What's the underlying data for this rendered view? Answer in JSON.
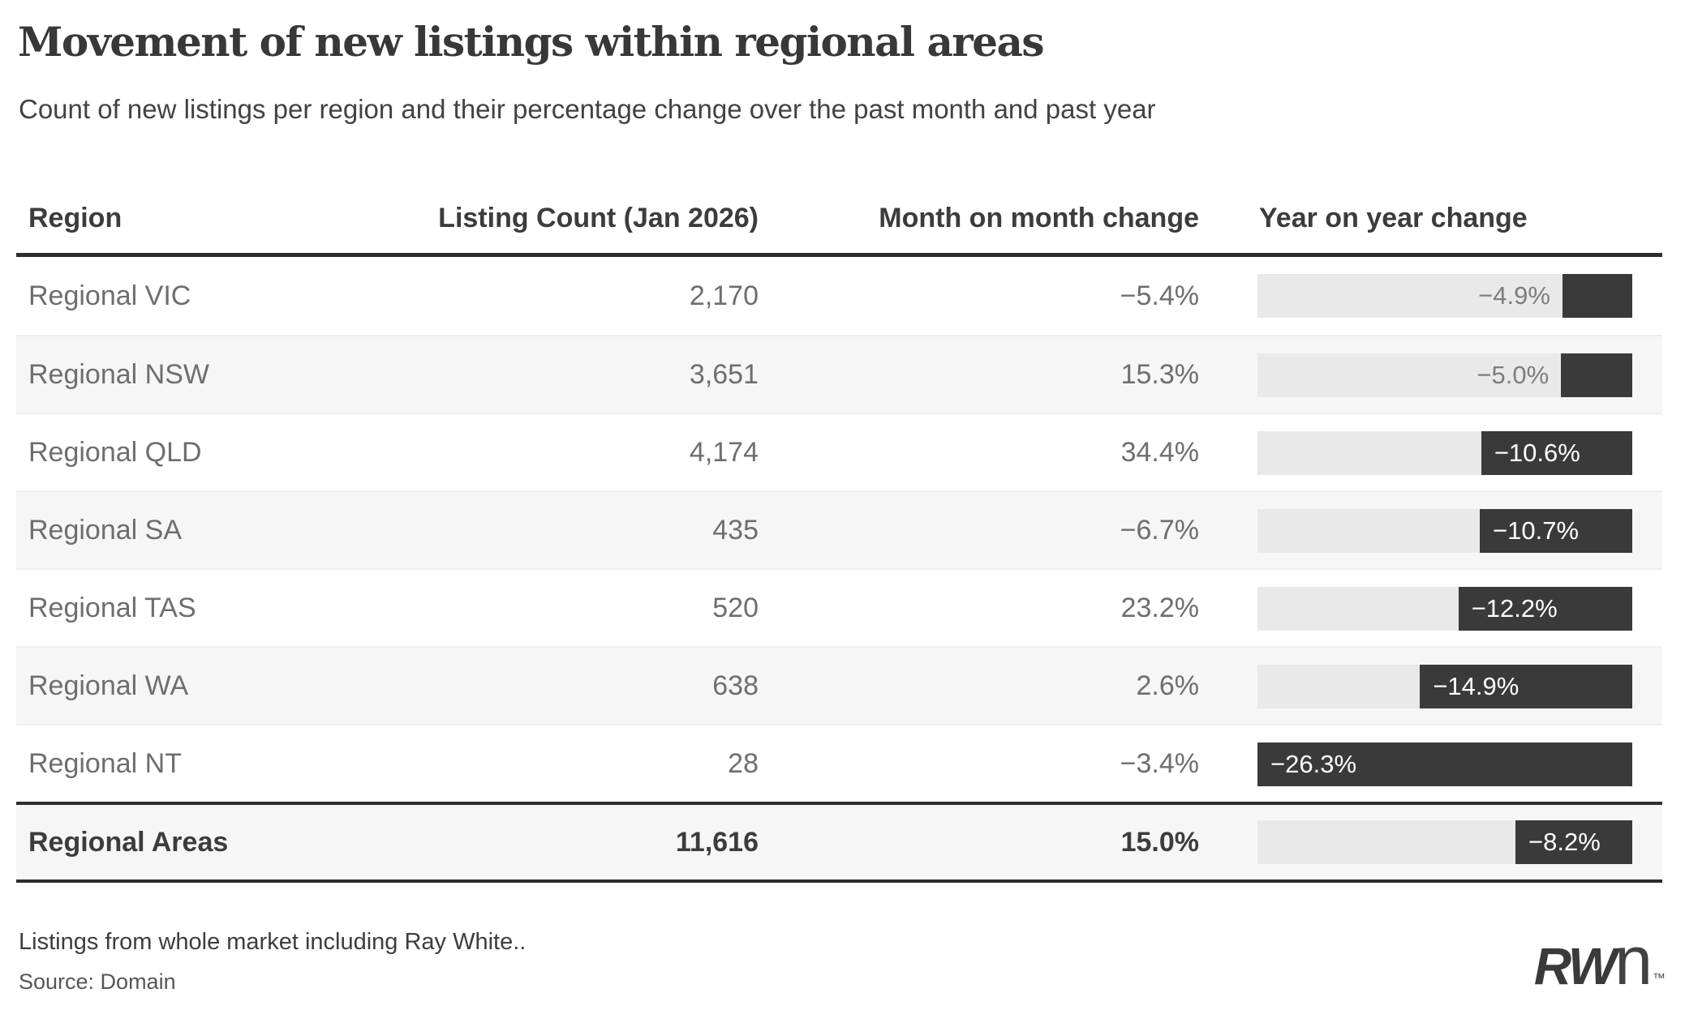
{
  "colors": {
    "bar_fill": "#3a3a3a",
    "bar_track": "#e9e9e9",
    "row_alt_bg": "#f6f6f6",
    "rule": "#2d2d2d",
    "text_dark": "#3c3c3c",
    "text_body": "#6e6e6e",
    "bar_label_inside": "#ffffff",
    "bar_label_outside": "#7d7d7d"
  },
  "header": {
    "title": "Movement of new listings within regional areas",
    "subtitle": "Count of new listings per region and their percentage change over the past month and past year"
  },
  "table": {
    "columns": [
      "Region",
      "Listing Count (Jan 2026)",
      "Month on month change",
      "Year on year change"
    ],
    "rows": [
      {
        "region": "Regional VIC",
        "count": "2,170",
        "mom": "−5.4%",
        "yoy_label": "−4.9%",
        "yoy_value": -4.9
      },
      {
        "region": "Regional NSW",
        "count": "3,651",
        "mom": "15.3%",
        "yoy_label": "−5.0%",
        "yoy_value": -5.0
      },
      {
        "region": "Regional QLD",
        "count": "4,174",
        "mom": "34.4%",
        "yoy_label": "−10.6%",
        "yoy_value": -10.6
      },
      {
        "region": "Regional SA",
        "count": "435",
        "mom": "−6.7%",
        "yoy_label": "−10.7%",
        "yoy_value": -10.7
      },
      {
        "region": "Regional TAS",
        "count": "520",
        "mom": "23.2%",
        "yoy_label": "−12.2%",
        "yoy_value": -12.2
      },
      {
        "region": "Regional WA",
        "count": "638",
        "mom": "2.6%",
        "yoy_label": "−14.9%",
        "yoy_value": -14.9
      },
      {
        "region": "Regional NT",
        "count": "28",
        "mom": "−3.4%",
        "yoy_label": "−26.3%",
        "yoy_value": -26.3
      }
    ],
    "total_row": {
      "region": "Regional Areas",
      "count": "11,616",
      "mom": "15.0%",
      "yoy_label": "−8.2%",
      "yoy_value": -8.2
    }
  },
  "footer": {
    "note": "Listings from whole market including Ray White..",
    "source": "Source: Domain",
    "logo_rw": "RW",
    "logo_n": "n",
    "logo_tm": "™"
  },
  "chart_data": {
    "type": "table",
    "title": "Movement of new listings within regional areas",
    "subtitle": "Count of new listings per region and their percentage change over the past month and past year",
    "columns": [
      "Region",
      "Listing Count (Jan 2026)",
      "Month on month change",
      "Year on year change"
    ],
    "rows": [
      [
        "Regional VIC",
        2170,
        -5.4,
        -4.9
      ],
      [
        "Regional NSW",
        3651,
        15.3,
        -5.0
      ],
      [
        "Regional QLD",
        4174,
        34.4,
        -10.6
      ],
      [
        "Regional SA",
        435,
        -6.7,
        -10.7
      ],
      [
        "Regional TAS",
        520,
        23.2,
        -12.2
      ],
      [
        "Regional WA",
        638,
        2.6,
        -14.9
      ],
      [
        "Regional NT",
        28,
        -3.4,
        -26.3
      ],
      [
        "Regional Areas",
        11616,
        15.0,
        -8.2
      ]
    ],
    "bar_column": "Year on year change",
    "bar_axis_range": [
      -26.3,
      0
    ],
    "bar_anchor": "right",
    "legend": "off",
    "grid": "off",
    "units": {
      "Listing Count (Jan 2026)": "count",
      "Month on month change": "percent",
      "Year on year change": "percent"
    }
  }
}
